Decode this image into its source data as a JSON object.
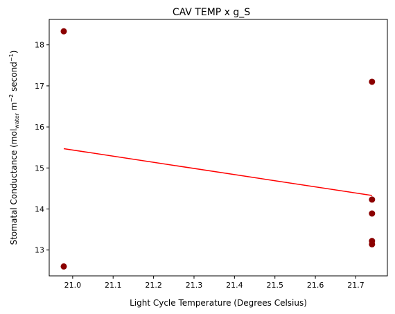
{
  "chart_data": {
    "type": "scatter",
    "title": "CAV TEMP x g_S",
    "xlabel": "Light Cycle Temperature (Degrees Celsius)",
    "ylabel_parts": {
      "prefix": "Stomatal Conductance (mol",
      "subscript": "water",
      "middle": " m",
      "exp1": "−2",
      "middle2": " second",
      "exp2": "−1",
      "suffix": ")"
    },
    "xlim": [
      20.942,
      21.778
    ],
    "ylim": [
      12.37,
      18.62
    ],
    "xticks": [
      21.0,
      21.1,
      21.2,
      21.3,
      21.4,
      21.5,
      21.6,
      21.7
    ],
    "xtick_labels": [
      "21.0",
      "21.1",
      "21.2",
      "21.3",
      "21.4",
      "21.5",
      "21.6",
      "21.7"
    ],
    "yticks": [
      13,
      14,
      15,
      16,
      17,
      18
    ],
    "ytick_labels": [
      "13",
      "14",
      "15",
      "16",
      "17",
      "18"
    ],
    "series": [
      {
        "name": "observations",
        "kind": "scatter",
        "color": "#8b0000",
        "points": [
          {
            "x": 20.978,
            "y": 18.33
          },
          {
            "x": 20.978,
            "y": 12.6
          },
          {
            "x": 21.74,
            "y": 17.1
          },
          {
            "x": 21.74,
            "y": 14.23
          },
          {
            "x": 21.74,
            "y": 13.89
          },
          {
            "x": 21.74,
            "y": 13.22
          },
          {
            "x": 21.74,
            "y": 13.14
          }
        ]
      },
      {
        "name": "trend",
        "kind": "line",
        "color": "#ff0000",
        "points": [
          {
            "x": 20.978,
            "y": 15.47
          },
          {
            "x": 21.74,
            "y": 14.33
          }
        ]
      }
    ]
  }
}
